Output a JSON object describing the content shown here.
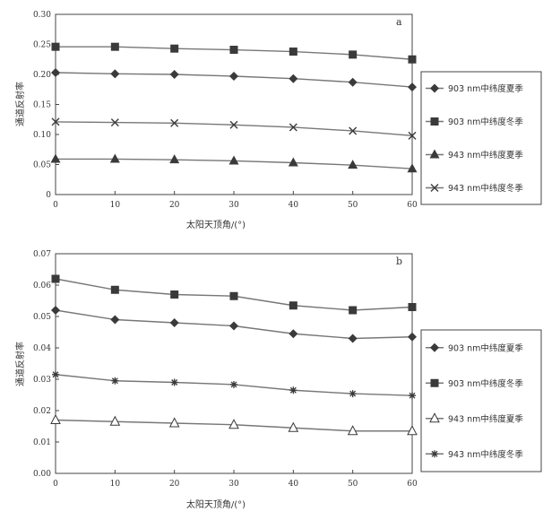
{
  "chart_data": [
    {
      "panel": "a",
      "type": "line",
      "xlabel": "太阳天顶角/(°)",
      "ylabel": "通道反射率",
      "x": [
        0,
        10,
        20,
        30,
        40,
        50,
        60
      ],
      "xlim": [
        0,
        60
      ],
      "xticks": [
        "0",
        "10",
        "20",
        "30",
        "40",
        "50",
        "60"
      ],
      "ylim": [
        0,
        0.3
      ],
      "yticks": [
        "0",
        "0.05",
        "0.10",
        "0.15",
        "0.20",
        "0.25",
        "0.30"
      ],
      "grid": false,
      "legend_position": "right",
      "series": [
        {
          "name": "903 nm中纬度夏季",
          "marker": "diamond",
          "values": [
            0.203,
            0.201,
            0.2,
            0.197,
            0.193,
            0.187,
            0.179
          ]
        },
        {
          "name": "903 nm中纬度冬季",
          "marker": "square",
          "values": [
            0.246,
            0.246,
            0.243,
            0.241,
            0.238,
            0.233,
            0.225
          ]
        },
        {
          "name": "943 nm中纬度夏季",
          "marker": "triangle",
          "values": [
            0.059,
            0.059,
            0.058,
            0.056,
            0.053,
            0.049,
            0.043
          ]
        },
        {
          "name": "943 nm中纬度冬季",
          "marker": "x",
          "values": [
            0.121,
            0.12,
            0.119,
            0.116,
            0.112,
            0.106,
            0.098
          ]
        }
      ]
    },
    {
      "panel": "b",
      "type": "line",
      "xlabel": "太阳天顶角/(°)",
      "ylabel": "通道反射率",
      "x": [
        0,
        10,
        20,
        30,
        40,
        50,
        60
      ],
      "xlim": [
        0,
        60
      ],
      "xticks": [
        "0",
        "10",
        "20",
        "30",
        "40",
        "50",
        "60"
      ],
      "ylim": [
        0,
        0.07
      ],
      "yticks": [
        "0.00",
        "0.01",
        "0.02",
        "0.03",
        "0.04",
        "0.05",
        "0.06",
        "0.07"
      ],
      "grid": false,
      "legend_position": "right",
      "series": [
        {
          "name": "903 nm中纬度夏季",
          "marker": "diamond",
          "values": [
            0.052,
            0.049,
            0.048,
            0.047,
            0.0445,
            0.043,
            0.0435
          ]
        },
        {
          "name": "903 nm中纬度冬季",
          "marker": "square",
          "values": [
            0.062,
            0.0585,
            0.057,
            0.0565,
            0.0535,
            0.052,
            0.053
          ]
        },
        {
          "name": "943 nm中纬度夏季",
          "marker": "triangle-open",
          "values": [
            0.017,
            0.0165,
            0.016,
            0.0155,
            0.0145,
            0.0135,
            0.0135
          ]
        },
        {
          "name": "943 nm中纬度冬季",
          "marker": "star",
          "values": [
            0.0315,
            0.0295,
            0.029,
            0.0283,
            0.0265,
            0.0254,
            0.0248
          ]
        }
      ]
    }
  ]
}
